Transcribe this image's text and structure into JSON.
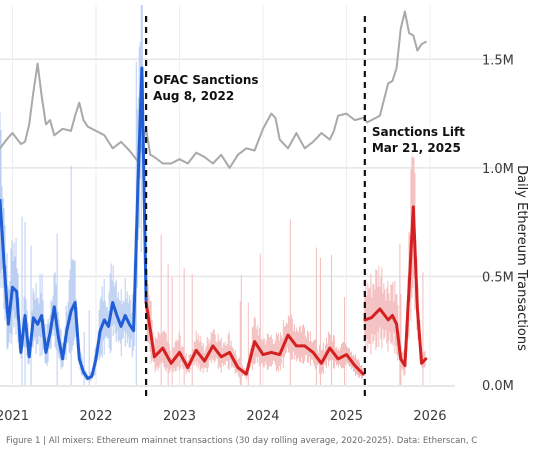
{
  "caption": "Figure 1 | All mixers: Ethereum mainnet transactions (30 day rolling average, 2020-2025). Data: Etherscan, C",
  "chart_data": {
    "type": "line",
    "title": "",
    "xlabel": "",
    "ylabel": "Daily Ethereum Transactions",
    "y_axis_side": "right",
    "x_range": [
      2020.85,
      2026.3
    ],
    "ylim": [
      0,
      1750000
    ],
    "x_ticks": [
      2021,
      2022,
      2023,
      2024,
      2025,
      2026
    ],
    "x_tick_labels": [
      "2021",
      "2022",
      "2023",
      "2024",
      "2025",
      "2026"
    ],
    "y_ticks": [
      0,
      500000,
      1000000,
      1500000
    ],
    "y_tick_labels": [
      "0.0M",
      "0.5M",
      "1.0M",
      "1.5M"
    ],
    "grid": true,
    "colors": {
      "ethereum": "#a9a9a9",
      "mixers_before_sanctions": "#1f5ed4",
      "mixers_daily_before": "#b9cdf2",
      "mixers_during_sanctions": "#d42020",
      "mixers_daily_during": "#f3bcbc",
      "event_line": "#111111"
    },
    "events": [
      {
        "x": 2022.6,
        "label": "OFAC Sanctions",
        "date": "Aug 8, 2022"
      },
      {
        "x": 2025.22,
        "label": "Sanctions Lift",
        "date": "Mar 21, 2025"
      }
    ],
    "series": [
      {
        "key": "ethereum",
        "x": [
          2020.85,
          2020.95,
          2021.0,
          2021.1,
          2021.15,
          2021.2,
          2021.25,
          2021.3,
          2021.35,
          2021.4,
          2021.45,
          2021.5,
          2021.6,
          2021.7,
          2021.75,
          2021.8,
          2021.85,
          2021.9,
          2022.0,
          2022.1,
          2022.2,
          2022.3,
          2022.4,
          2022.5,
          2022.6,
          2022.65,
          2022.7,
          2022.8,
          2022.9,
          2023.0,
          2023.1,
          2023.2,
          2023.3,
          2023.4,
          2023.5,
          2023.6,
          2023.7,
          2023.8,
          2023.9,
          2024.0,
          2024.1,
          2024.15,
          2024.2,
          2024.3,
          2024.4,
          2024.5,
          2024.6,
          2024.7,
          2024.8,
          2024.85,
          2024.9,
          2025.0,
          2025.1,
          2025.2,
          2025.25,
          2025.3,
          2025.4,
          2025.5,
          2025.55,
          2025.6,
          2025.65,
          2025.7,
          2025.75,
          2025.8,
          2025.85,
          2025.9,
          2025.95
        ],
        "values": [
          1090000,
          1140000,
          1160000,
          1110000,
          1120000,
          1200000,
          1350000,
          1480000,
          1330000,
          1200000,
          1220000,
          1150000,
          1180000,
          1170000,
          1240000,
          1300000,
          1220000,
          1190000,
          1170000,
          1150000,
          1090000,
          1120000,
          1080000,
          1030000,
          1180000,
          1060000,
          1050000,
          1020000,
          1020000,
          1040000,
          1020000,
          1070000,
          1050000,
          1020000,
          1060000,
          1000000,
          1060000,
          1090000,
          1080000,
          1180000,
          1250000,
          1230000,
          1130000,
          1090000,
          1160000,
          1090000,
          1120000,
          1160000,
          1130000,
          1170000,
          1240000,
          1250000,
          1220000,
          1230000,
          1210000,
          1220000,
          1240000,
          1390000,
          1400000,
          1460000,
          1640000,
          1720000,
          1620000,
          1610000,
          1540000,
          1570000,
          1580000
        ]
      },
      {
        "key": "mixers_before_sanctions",
        "x": [
          2020.85,
          2020.9,
          2020.95,
          2021.0,
          2021.05,
          2021.1,
          2021.15,
          2021.2,
          2021.25,
          2021.3,
          2021.35,
          2021.4,
          2021.45,
          2021.5,
          2021.55,
          2021.6,
          2021.65,
          2021.7,
          2021.75,
          2021.8,
          2021.85,
          2021.9,
          2021.95,
          2022.0,
          2022.05,
          2022.1,
          2022.15,
          2022.2,
          2022.25,
          2022.3,
          2022.35,
          2022.4,
          2022.45,
          2022.5,
          2022.55,
          2022.6
        ],
        "values": [
          850000,
          550000,
          280000,
          450000,
          430000,
          150000,
          320000,
          130000,
          310000,
          280000,
          320000,
          150000,
          240000,
          360000,
          220000,
          120000,
          250000,
          340000,
          380000,
          120000,
          60000,
          30000,
          40000,
          120000,
          250000,
          300000,
          270000,
          380000,
          320000,
          270000,
          320000,
          280000,
          250000,
          900000,
          1460000,
          380000
        ]
      },
      {
        "key": "mixers_during_sanctions",
        "x": [
          2022.6,
          2022.7,
          2022.8,
          2022.9,
          2023.0,
          2023.1,
          2023.2,
          2023.3,
          2023.4,
          2023.5,
          2023.6,
          2023.7,
          2023.8,
          2023.9,
          2024.0,
          2024.1,
          2024.2,
          2024.3,
          2024.4,
          2024.5,
          2024.6,
          2024.7,
          2024.8,
          2024.9,
          2025.0,
          2025.1,
          2025.2
        ],
        "values": [
          380000,
          130000,
          170000,
          100000,
          150000,
          80000,
          160000,
          110000,
          180000,
          130000,
          150000,
          80000,
          50000,
          200000,
          140000,
          150000,
          140000,
          230000,
          180000,
          180000,
          150000,
          100000,
          170000,
          120000,
          140000,
          90000,
          50000
        ]
      },
      {
        "key": "mixers_after_lift",
        "x": [
          2025.22,
          2025.3,
          2025.4,
          2025.5,
          2025.55,
          2025.6,
          2025.65,
          2025.7,
          2025.75,
          2025.8,
          2025.85,
          2025.9,
          2025.95
        ],
        "values": [
          300000,
          310000,
          350000,
          300000,
          320000,
          280000,
          120000,
          90000,
          450000,
          820000,
          350000,
          100000,
          120000
        ]
      }
    ]
  }
}
